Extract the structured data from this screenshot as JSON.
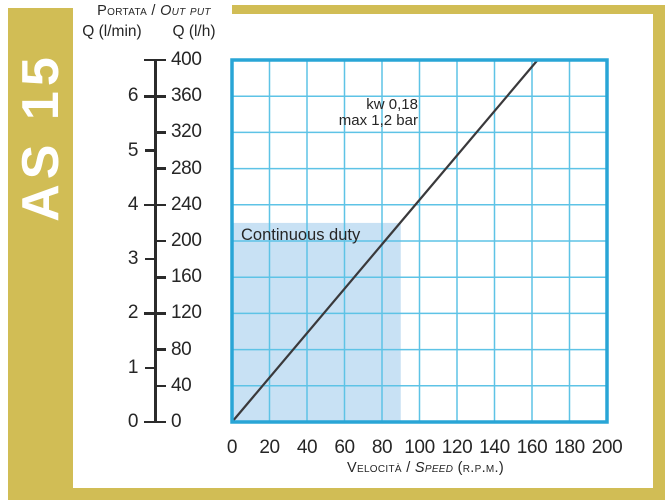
{
  "sidebar": {
    "model": "AS 15"
  },
  "header": {
    "title_main": "Portata /",
    "title_italic": "Out put",
    "unit_lmin": "Q (l/min)",
    "unit_lh": "Q (l/h)"
  },
  "chart_data": {
    "type": "line",
    "title": "",
    "xlabel": "Velocità / Speed (R.P.M.)",
    "xlabel_parts": {
      "it": "Velocità /",
      "en": "Speed",
      "unit": "(r.p.m.)"
    },
    "ylabel_left": "Q (l/min)",
    "ylabel_right": "Q (l/h)",
    "xlim": [
      0,
      200
    ],
    "ylim_lh": [
      0,
      400
    ],
    "lmin_to_lh": 60,
    "x_ticks": [
      0,
      20,
      40,
      60,
      80,
      100,
      120,
      140,
      160,
      180,
      200
    ],
    "y_ticks_lh": [
      0,
      40,
      80,
      120,
      160,
      200,
      240,
      280,
      320,
      360,
      400
    ],
    "y_ticks_lmin": [
      0,
      1,
      2,
      3,
      4,
      5,
      6
    ],
    "grid": true,
    "legend": false,
    "series": [
      {
        "name": "flow-vs-speed",
        "units": {
          "x": "r.p.m.",
          "y": "l/h"
        },
        "points": [
          [
            0,
            0
          ],
          [
            163,
            400
          ]
        ]
      }
    ],
    "annotations": [
      "kw 0,18",
      "max 1,2 bar"
    ],
    "continuous_duty_region": {
      "label": "Continuous duty",
      "rpm_range": [
        0,
        90
      ],
      "lh_range": [
        0,
        220
      ]
    },
    "colors": {
      "frame_gold": "#d1bd55",
      "chart_border": "#29a5d6",
      "grid_line": "#5ec3e6",
      "duty_fill": "#c8e1f4",
      "flow_line": "#3a393b",
      "text": "#262626"
    }
  }
}
